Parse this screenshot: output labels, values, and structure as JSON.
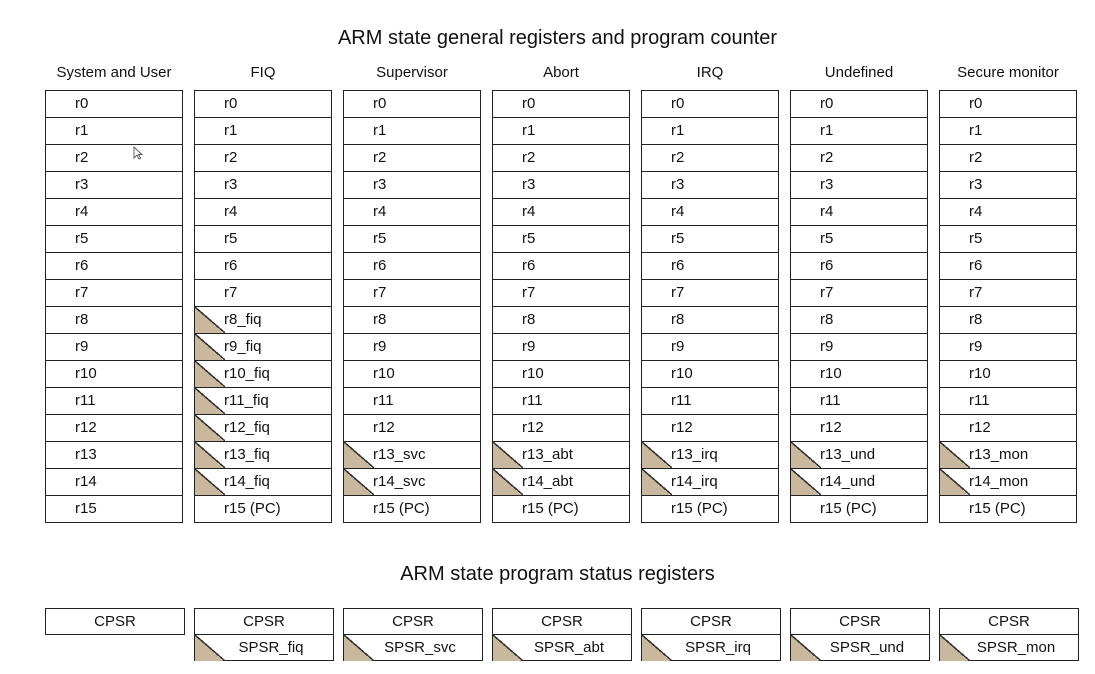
{
  "titles": {
    "general": "ARM state general registers and program counter",
    "status": "ARM state program status registers"
  },
  "columns": [
    {
      "name": "System and User",
      "regs": [
        "r0",
        "r1",
        "r2",
        "r3",
        "r4",
        "r5",
        "r6",
        "r7",
        "r8",
        "r9",
        "r10",
        "r11",
        "r12",
        "r13",
        "r14",
        "r15"
      ],
      "banked": [],
      "psr": [
        "CPSR"
      ]
    },
    {
      "name": "FIQ",
      "regs": [
        "r0",
        "r1",
        "r2",
        "r3",
        "r4",
        "r5",
        "r6",
        "r7",
        "r8_fiq",
        "r9_fiq",
        "r10_fiq",
        "r11_fiq",
        "r12_fiq",
        "r13_fiq",
        "r14_fiq",
        "r15 (PC)"
      ],
      "banked": [
        8,
        9,
        10,
        11,
        12,
        13,
        14
      ],
      "psr": [
        "CPSR",
        "SPSR_fiq"
      ]
    },
    {
      "name": "Supervisor",
      "regs": [
        "r0",
        "r1",
        "r2",
        "r3",
        "r4",
        "r5",
        "r6",
        "r7",
        "r8",
        "r9",
        "r10",
        "r11",
        "r12",
        "r13_svc",
        "r14_svc",
        "r15 (PC)"
      ],
      "banked": [
        13,
        14
      ],
      "psr": [
        "CPSR",
        "SPSR_svc"
      ]
    },
    {
      "name": "Abort",
      "regs": [
        "r0",
        "r1",
        "r2",
        "r3",
        "r4",
        "r5",
        "r6",
        "r7",
        "r8",
        "r9",
        "r10",
        "r11",
        "r12",
        "r13_abt",
        "r14_abt",
        "r15 (PC)"
      ],
      "banked": [
        13,
        14
      ],
      "psr": [
        "CPSR",
        "SPSR_abt"
      ]
    },
    {
      "name": "IRQ",
      "regs": [
        "r0",
        "r1",
        "r2",
        "r3",
        "r4",
        "r5",
        "r6",
        "r7",
        "r8",
        "r9",
        "r10",
        "r11",
        "r12",
        "r13_irq",
        "r14_irq",
        "r15 (PC)"
      ],
      "banked": [
        13,
        14
      ],
      "psr": [
        "CPSR",
        "SPSR_irq"
      ]
    },
    {
      "name": "Undefined",
      "regs": [
        "r0",
        "r1",
        "r2",
        "r3",
        "r4",
        "r5",
        "r6",
        "r7",
        "r8",
        "r9",
        "r10",
        "r11",
        "r12",
        "r13_und",
        "r14_und",
        "r15 (PC)"
      ],
      "banked": [
        13,
        14
      ],
      "psr": [
        "CPSR",
        "SPSR_und"
      ]
    },
    {
      "name": "Secure monitor",
      "regs": [
        "r0",
        "r1",
        "r2",
        "r3",
        "r4",
        "r5",
        "r6",
        "r7",
        "r8",
        "r9",
        "r10",
        "r11",
        "r12",
        "r13_mon",
        "r14_mon",
        "r15 (PC)"
      ],
      "banked": [
        13,
        14
      ],
      "psr": [
        "CPSR",
        "SPSR_mon"
      ]
    }
  ],
  "colors": {
    "banked_fill": "#c9b79e",
    "border": "#222222"
  }
}
